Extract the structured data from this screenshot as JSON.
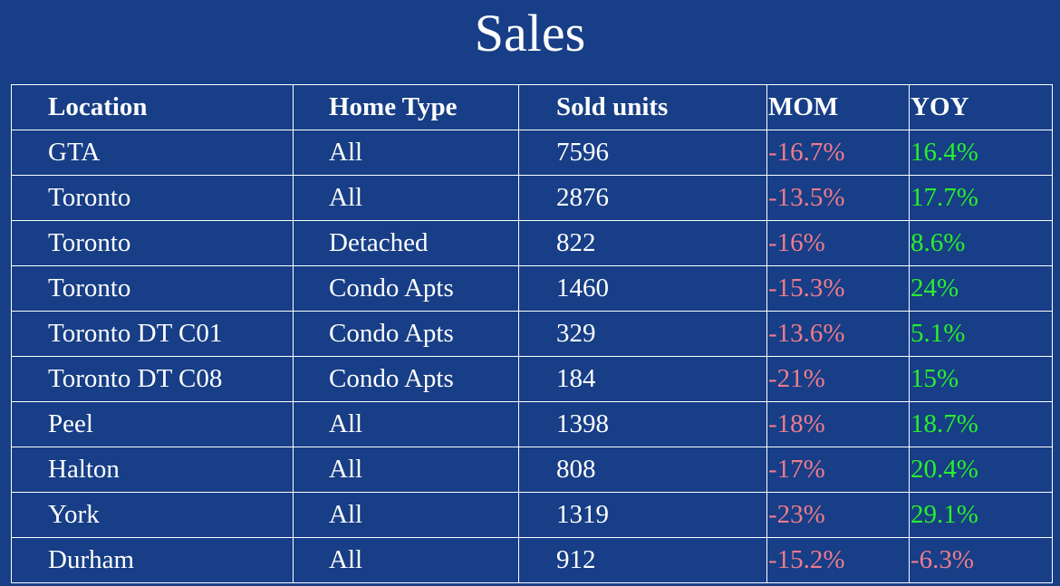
{
  "title": "Sales",
  "columns": [
    "Location",
    "Home Type",
    "Sold units",
    "MOM",
    "YOY"
  ],
  "rows": [
    {
      "location": "GTA",
      "home_type": "All",
      "sold_units": "7596",
      "mom": "-16.7%",
      "yoy": "16.4%"
    },
    {
      "location": "Toronto",
      "home_type": "All",
      "sold_units": "2876",
      "mom": "-13.5%",
      "yoy": "17.7%"
    },
    {
      "location": "Toronto",
      "home_type": "Detached",
      "sold_units": "822",
      "mom": "-16%",
      "yoy": "8.6%"
    },
    {
      "location": "Toronto",
      "home_type": "Condo Apts",
      "sold_units": "1460",
      "mom": "-15.3%",
      "yoy": "24%"
    },
    {
      "location": "Toronto DT C01",
      "home_type": "Condo Apts",
      "sold_units": "329",
      "mom": "-13.6%",
      "yoy": "5.1%"
    },
    {
      "location": "Toronto DT C08",
      "home_type": "Condo Apts",
      "sold_units": "184",
      "mom": "-21%",
      "yoy": "15%"
    },
    {
      "location": "Peel",
      "home_type": "All",
      "sold_units": "1398",
      "mom": "-18%",
      "yoy": "18.7%"
    },
    {
      "location": "Halton",
      "home_type": "All",
      "sold_units": "808",
      "mom": "-17%",
      "yoy": "20.4%"
    },
    {
      "location": "York",
      "home_type": "All",
      "sold_units": "1319",
      "mom": "-23%",
      "yoy": "29.1%"
    },
    {
      "location": "Durham",
      "home_type": "All",
      "sold_units": "912",
      "mom": "-15.2%",
      "yoy": "-6.3%"
    }
  ],
  "colors": {
    "background": "#173e86",
    "text": "#ffffff",
    "negative": "#f07b8c",
    "positive": "#27f02c"
  }
}
